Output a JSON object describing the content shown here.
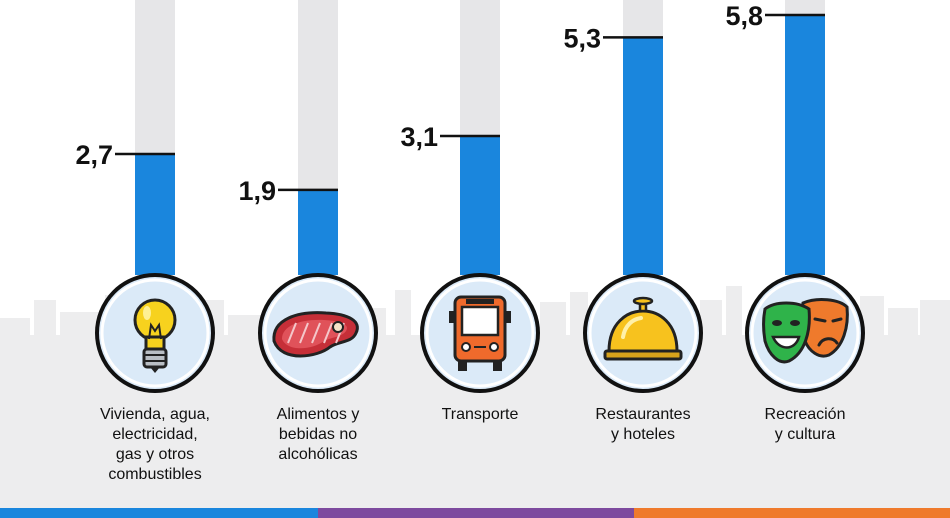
{
  "chart_data": {
    "type": "bar",
    "categories": [
      "Vivienda, agua,\nelectricidad,\ngas y otros\ncombustibles",
      "Alimentos y\nbebidas no\nalcohólicas",
      "Transporte",
      "Restaurantes\ny hoteles",
      "Recreación\ny cultura"
    ],
    "values": [
      2.7,
      1.9,
      3.1,
      5.3,
      5.8
    ],
    "value_labels": [
      "2,7",
      "1,9",
      "3,1",
      "5,3",
      "5,8"
    ],
    "icons": [
      "light-bulb-icon",
      "steak-icon",
      "bus-icon",
      "service-bell-icon",
      "theater-masks-icon"
    ],
    "colors": {
      "bar": "#1a86dd",
      "track": "#e6e6e8",
      "skyline": "#ededee",
      "circle_fill": "#dbeaf8",
      "stripe": [
        "#1a86dd",
        "#7d4a9e",
        "#ef7a2c"
      ]
    }
  }
}
